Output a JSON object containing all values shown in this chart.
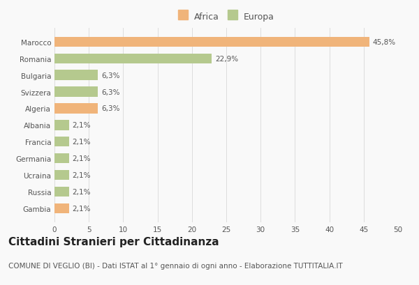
{
  "categories": [
    "Marocco",
    "Romania",
    "Bulgaria",
    "Svizzera",
    "Algeria",
    "Albania",
    "Francia",
    "Germania",
    "Ucraina",
    "Russia",
    "Gambia"
  ],
  "values": [
    45.8,
    22.9,
    6.3,
    6.3,
    6.3,
    2.1,
    2.1,
    2.1,
    2.1,
    2.1,
    2.1
  ],
  "labels": [
    "45,8%",
    "22,9%",
    "6,3%",
    "6,3%",
    "6,3%",
    "2,1%",
    "2,1%",
    "2,1%",
    "2,1%",
    "2,1%",
    "2,1%"
  ],
  "colors": [
    "#f0b47a",
    "#b5c98e",
    "#b5c98e",
    "#b5c98e",
    "#f0b47a",
    "#b5c98e",
    "#b5c98e",
    "#b5c98e",
    "#b5c98e",
    "#b5c98e",
    "#f0b47a"
  ],
  "africa_color": "#f0b47a",
  "europa_color": "#b5c98e",
  "title": "Cittadini Stranieri per Cittadinanza",
  "subtitle": "COMUNE DI VEGLIO (BI) - Dati ISTAT al 1° gennaio di ogni anno - Elaborazione TUTTITALIA.IT",
  "xlim": [
    0,
    50
  ],
  "xticks": [
    0,
    5,
    10,
    15,
    20,
    25,
    30,
    35,
    40,
    45,
    50
  ],
  "background_color": "#f9f9f9",
  "legend_labels": [
    "Africa",
    "Europa"
  ],
  "title_fontsize": 11,
  "subtitle_fontsize": 7.5,
  "label_fontsize": 7.5,
  "tick_fontsize": 7.5,
  "legend_fontsize": 9
}
